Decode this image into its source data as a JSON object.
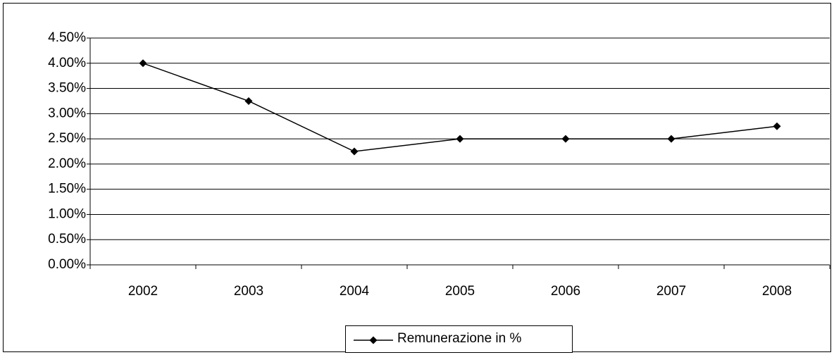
{
  "chart_data": {
    "type": "line",
    "categories": [
      "2002",
      "2003",
      "2004",
      "2005",
      "2006",
      "2007",
      "2008"
    ],
    "series": [
      {
        "name": "Remunerazione in %",
        "color": "#000000",
        "values": [
          4.0,
          3.25,
          2.25,
          2.5,
          2.5,
          2.5,
          2.75
        ]
      }
    ],
    "ylim": [
      0,
      4.5
    ],
    "yticks": [
      {
        "value": 0,
        "label": "0.00%"
      },
      {
        "value": 0.5,
        "label": "0.50%"
      },
      {
        "value": 1,
        "label": "1.00%"
      },
      {
        "value": 1.5,
        "label": "1.50%"
      },
      {
        "value": 2,
        "label": "2.00%"
      },
      {
        "value": 2.5,
        "label": "2.50%"
      },
      {
        "value": 3,
        "label": "3.00%"
      },
      {
        "value": 3.5,
        "label": "3.50%"
      },
      {
        "value": 4,
        "label": "4.00%"
      },
      {
        "value": 4.5,
        "label": "4.50%"
      }
    ],
    "grid": true,
    "legend": "bottom"
  }
}
